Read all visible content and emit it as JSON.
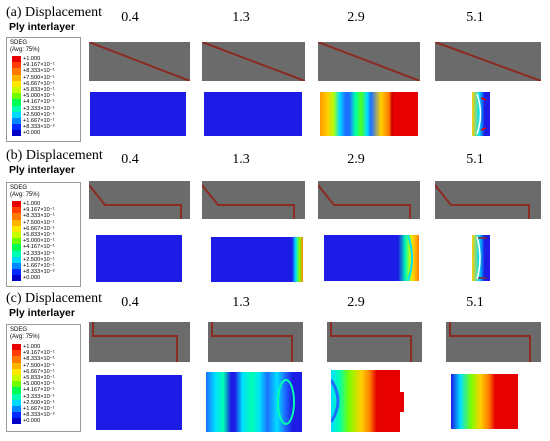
{
  "panels": [
    {
      "label": "(a)",
      "title": "Displacement",
      "subtitle": "Ply interlayer"
    },
    {
      "label": "(b)",
      "title": "Displacement",
      "subtitle": "Ply interlayer"
    },
    {
      "label": "(c)",
      "title": "Displacement",
      "subtitle": "Ply interlayer"
    }
  ],
  "displacements": [
    "0.4",
    "1.3",
    "2.9",
    "5.1"
  ],
  "legend": {
    "header_line1": "SDEG",
    "header_line2": "(Avg: 75%)",
    "labels": [
      "+1.000",
      "+9.167×10⁻¹",
      "+8.333×10⁻¹",
      "+7.500×10⁻¹",
      "+6.667×10⁻¹",
      "+5.833×10⁻¹",
      "+5.000×10⁻¹",
      "+4.167×10⁻¹",
      "+3.333×10⁻¹",
      "+2.500×10⁻¹",
      "+1.667×10⁻¹",
      "+8.333×10⁻²",
      "+0.000"
    ],
    "colors": [
      "#e60000",
      "#ff3d00",
      "#ff7a00",
      "#ffb400",
      "#ffe800",
      "#c8ff00",
      "#6dff00",
      "#00ff52",
      "#00ffb0",
      "#00d8ff",
      "#0088ff",
      "#0028ff",
      "#0000c8"
    ]
  },
  "field_colors": {
    "ply_background": "#6b6b6b",
    "crack_line": "#8b2b22",
    "undamaged": "#1a1ae0"
  }
}
